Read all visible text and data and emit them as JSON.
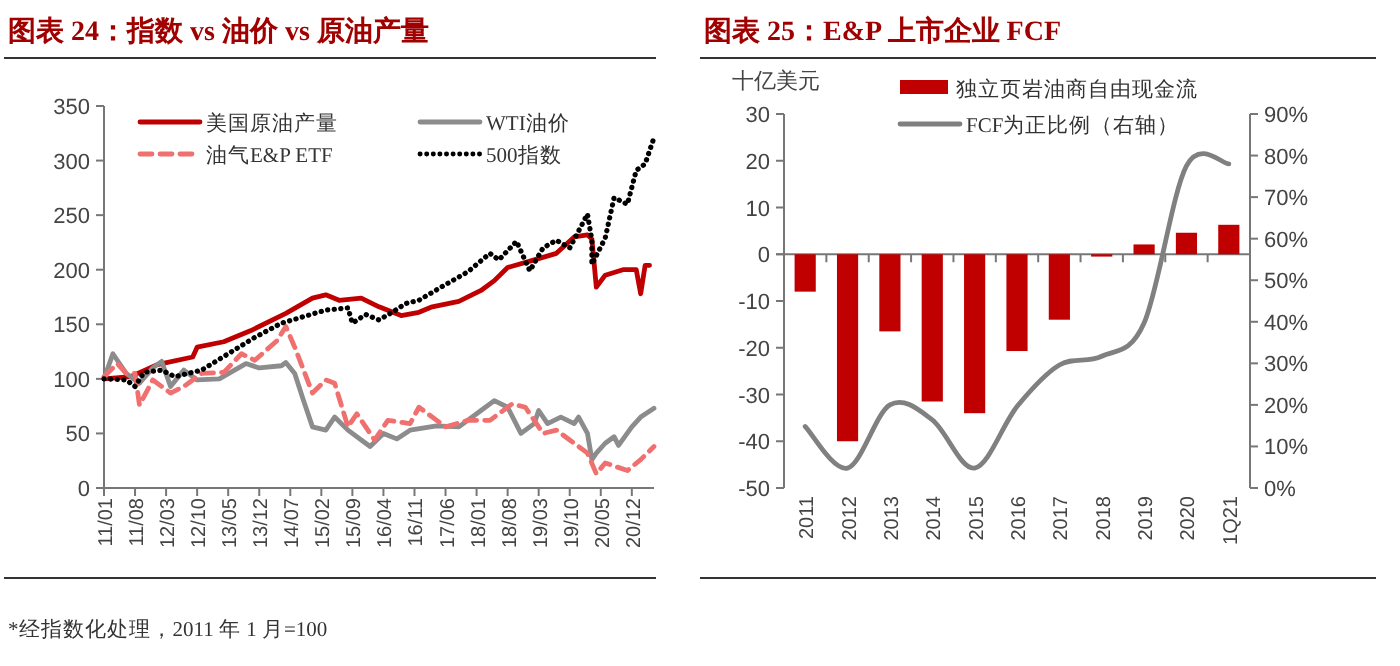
{
  "chart_data": [
    {
      "type": "line",
      "title": "图表 24：指数 vs 油价 vs 原油产量",
      "xlim": [
        "2011-01",
        "2021-05"
      ],
      "xticks": [
        {
          "value": "2011-01",
          "label": "11/01"
        },
        {
          "value": "2011-08",
          "label": "11/08"
        },
        {
          "value": "2012-03",
          "label": "12/03"
        },
        {
          "value": "2012-10",
          "label": "12/10"
        },
        {
          "value": "2013-05",
          "label": "13/05"
        },
        {
          "value": "2013-12",
          "label": "13/12"
        },
        {
          "value": "2014-07",
          "label": "14/07"
        },
        {
          "value": "2015-02",
          "label": "15/02"
        },
        {
          "value": "2015-09",
          "label": "15/09"
        },
        {
          "value": "2016-04",
          "label": "16/04"
        },
        {
          "value": "2016-11",
          "label": "16/11"
        },
        {
          "value": "2017-06",
          "label": "17/06"
        },
        {
          "value": "2018-01",
          "label": "18/01"
        },
        {
          "value": "2018-08",
          "label": "18/08"
        },
        {
          "value": "2019-03",
          "label": "19/03"
        },
        {
          "value": "2019-10",
          "label": "19/10"
        },
        {
          "value": "2020-05",
          "label": "20/05"
        },
        {
          "value": "2020-12",
          "label": "20/12"
        }
      ],
      "ylim": [
        0,
        350
      ],
      "yticks": [
        0,
        50,
        100,
        150,
        200,
        250,
        300,
        350
      ],
      "legend": "top",
      "annotations": [
        "*经指数化处理，2011 年 1 月=100"
      ],
      "series": [
        {
          "name": "美国原油产量",
          "color": "#c00000",
          "line_style": "solid",
          "x": [
            "2011-01",
            "2011-07",
            "2012-01",
            "2012-09",
            "2012-10",
            "2013-04",
            "2013-10",
            "2014-06",
            "2014-12",
            "2015-03",
            "2015-06",
            "2015-11",
            "2016-03",
            "2016-08",
            "2016-12",
            "2017-03",
            "2017-09",
            "2018-02",
            "2018-05",
            "2018-08",
            "2019-02",
            "2019-07",
            "2019-11",
            "2020-02",
            "2020-03",
            "2020-04",
            "2020-06",
            "2020-10",
            "2021-01",
            "2021-02",
            "2021-03",
            "2021-04"
          ],
          "values": [
            100,
            102,
            113,
            120,
            129,
            134,
            144,
            160,
            174,
            177,
            172,
            174,
            166,
            158,
            161,
            166,
            171,
            181,
            190,
            202,
            209,
            215,
            230,
            232,
            228,
            184,
            195,
            200,
            200,
            178,
            204,
            204
          ]
        },
        {
          "name": "WTI油价",
          "color": "#8c8c8c",
          "line_style": "solid",
          "x": [
            "2011-01",
            "2011-03",
            "2011-06",
            "2011-09",
            "2011-12",
            "2012-02",
            "2012-04",
            "2012-07",
            "2012-10",
            "2013-03",
            "2013-09",
            "2013-12",
            "2014-05",
            "2014-06",
            "2014-08",
            "2014-10",
            "2014-12",
            "2015-03",
            "2015-05",
            "2015-08",
            "2015-11",
            "2016-01",
            "2016-04",
            "2016-07",
            "2016-10",
            "2017-04",
            "2017-09",
            "2018-02",
            "2018-05",
            "2018-08",
            "2018-11",
            "2019-02",
            "2019-03",
            "2019-05",
            "2019-08",
            "2019-11",
            "2019-12",
            "2020-02",
            "2020-03",
            "2020-04",
            "2020-06",
            "2020-08",
            "2020-09",
            "2020-12",
            "2021-02",
            "2021-05"
          ],
          "values": [
            100,
            123,
            105,
            96,
            110,
            116,
            93,
            108,
            99,
            100,
            114,
            110,
            112,
            115,
            105,
            80,
            56,
            53,
            65,
            53,
            44,
            38,
            50,
            45,
            53,
            57,
            56,
            71,
            80,
            74,
            50,
            59,
            71,
            59,
            65,
            59,
            65,
            50,
            26,
            32,
            41,
            47,
            39,
            56,
            65,
            73
          ]
        },
        {
          "name": "油气E&P ETF",
          "color": "#f07070",
          "line_style": "dashed",
          "x": [
            "2011-01",
            "2011-04",
            "2011-06",
            "2011-08",
            "2011-09",
            "2011-12",
            "2012-04",
            "2012-07",
            "2012-11",
            "2013-04",
            "2013-08",
            "2013-11",
            "2014-04",
            "2014-06",
            "2014-08",
            "2014-12",
            "2015-03",
            "2015-05",
            "2015-08",
            "2015-10",
            "2016-02",
            "2016-05",
            "2016-10",
            "2016-12",
            "2017-06",
            "2017-11",
            "2018-04",
            "2018-09",
            "2018-12",
            "2019-04",
            "2019-07",
            "2019-10",
            "2020-02",
            "2020-04",
            "2020-06",
            "2020-11",
            "2021-02",
            "2021-05"
          ],
          "values": [
            102,
            114,
            105,
            105,
            76,
            99,
            87,
            93,
            105,
            106,
            123,
            117,
            135,
            148,
            129,
            87,
            99,
            96,
            56,
            68,
            44,
            62,
            59,
            74,
            56,
            62,
            62,
            77,
            74,
            50,
            53,
            44,
            32,
            13,
            23,
            16,
            26,
            38
          ]
        },
        {
          "name": "500指数",
          "color": "#000000",
          "line_style": "dotted",
          "x": [
            "2011-01",
            "2011-06",
            "2011-08",
            "2011-10",
            "2012-02",
            "2012-05",
            "2012-11",
            "2013-05",
            "2013-11",
            "2014-05",
            "2014-10",
            "2015-03",
            "2015-08",
            "2015-09",
            "2015-12",
            "2016-03",
            "2016-06",
            "2016-09",
            "2016-12",
            "2017-05",
            "2017-11",
            "2018-04",
            "2018-06",
            "2018-10",
            "2019-01",
            "2019-04",
            "2019-07",
            "2019-10",
            "2020-02",
            "2020-03",
            "2020-03",
            "2020-06",
            "2020-08",
            "2020-11",
            "2021-01",
            "2021-03",
            "2021-05"
          ],
          "values": [
            100,
            99,
            93,
            106,
            108,
            102,
            108,
            123,
            138,
            151,
            157,
            163,
            165,
            151,
            159,
            154,
            161,
            169,
            172,
            184,
            198,
            215,
            209,
            226,
            199,
            220,
            227,
            220,
            251,
            227,
            205,
            229,
            266,
            260,
            291,
            297,
            321
          ]
        }
      ]
    },
    {
      "type": "bar",
      "title": "图表 25：E&P 上市企业 FCF",
      "ylabel": "十亿美元",
      "categories": [
        "2011",
        "2012",
        "2013",
        "2014",
        "2015",
        "2016",
        "2017",
        "2018",
        "2019",
        "2020",
        "1Q21"
      ],
      "ylim": [
        -50,
        30
      ],
      "yticks": [
        -50,
        -40,
        -30,
        -20,
        -10,
        0,
        10,
        20,
        30
      ],
      "y2lim": [
        0,
        90
      ],
      "y2ticks": [
        {
          "value": 0,
          "label": "0%"
        },
        {
          "value": 10,
          "label": "10%"
        },
        {
          "value": 20,
          "label": "20%"
        },
        {
          "value": 30,
          "label": "30%"
        },
        {
          "value": 40,
          "label": "40%"
        },
        {
          "value": 50,
          "label": "50%"
        },
        {
          "value": 60,
          "label": "60%"
        },
        {
          "value": 70,
          "label": "70%"
        },
        {
          "value": 80,
          "label": "80%"
        },
        {
          "value": 90,
          "label": "90%"
        }
      ],
      "legend": "top",
      "series": [
        {
          "name": "独立页岩油商自由现金流",
          "color": "#c00000",
          "values": [
            -8,
            -40,
            -16.5,
            -31.5,
            -34,
            -20.7,
            -14,
            -0.5,
            2.1,
            4.6,
            6.3
          ]
        },
        {
          "name": "FCF为正比例（右轴）",
          "type": "line",
          "axis": "y2",
          "color": "#808080",
          "line_style": "solid",
          "values": [
            14.8,
            4.8,
            20,
            16.4,
            4.8,
            19.6,
            29.6,
            31.7,
            39.7,
            77.5,
            78
          ]
        }
      ]
    }
  ]
}
